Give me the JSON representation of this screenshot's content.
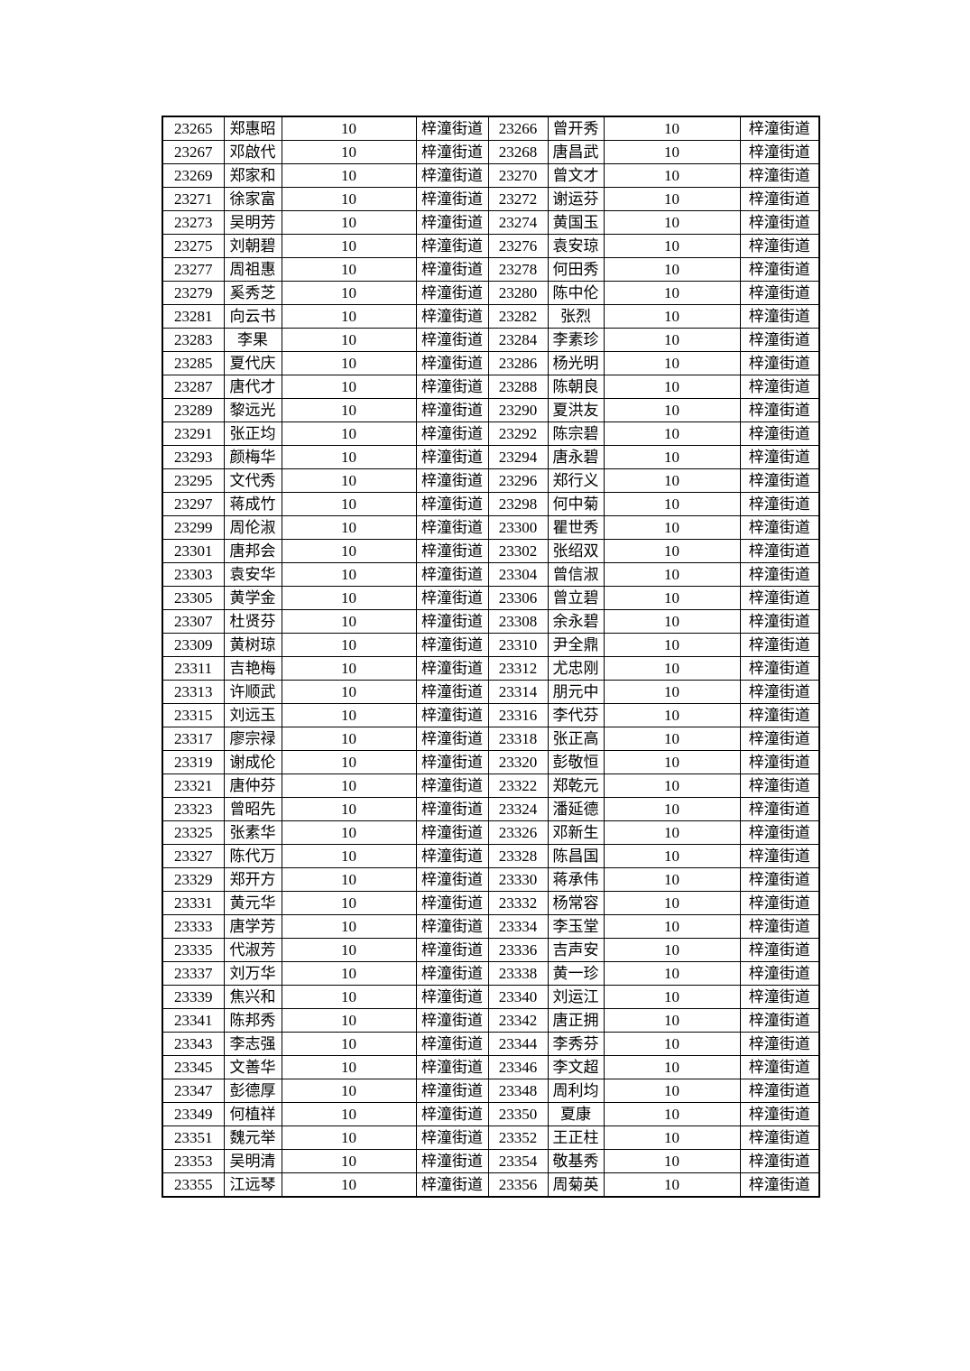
{
  "page": {
    "background_color": "#ffffff",
    "text_color": "#000000"
  },
  "table": {
    "column_roles": [
      "id",
      "name",
      "value",
      "district",
      "id",
      "name",
      "value",
      "district"
    ],
    "rows": [
      [
        "23265",
        "郑惠昭",
        "10",
        "梓潼街道",
        "23266",
        "曾开秀",
        "10",
        "梓潼街道"
      ],
      [
        "23267",
        "邓啟代",
        "10",
        "梓潼街道",
        "23268",
        "唐昌武",
        "10",
        "梓潼街道"
      ],
      [
        "23269",
        "郑家和",
        "10",
        "梓潼街道",
        "23270",
        "曾文才",
        "10",
        "梓潼街道"
      ],
      [
        "23271",
        "徐家富",
        "10",
        "梓潼街道",
        "23272",
        "谢运芬",
        "10",
        "梓潼街道"
      ],
      [
        "23273",
        "吴明芳",
        "10",
        "梓潼街道",
        "23274",
        "黄国玉",
        "10",
        "梓潼街道"
      ],
      [
        "23275",
        "刘朝碧",
        "10",
        "梓潼街道",
        "23276",
        "袁安琼",
        "10",
        "梓潼街道"
      ],
      [
        "23277",
        "周祖惠",
        "10",
        "梓潼街道",
        "23278",
        "何田秀",
        "10",
        "梓潼街道"
      ],
      [
        "23279",
        "奚秀芝",
        "10",
        "梓潼街道",
        "23280",
        "陈中伦",
        "10",
        "梓潼街道"
      ],
      [
        "23281",
        "向云书",
        "10",
        "梓潼街道",
        "23282",
        "张烈",
        "10",
        "梓潼街道"
      ],
      [
        "23283",
        "李果",
        "10",
        "梓潼街道",
        "23284",
        "李素珍",
        "10",
        "梓潼街道"
      ],
      [
        "23285",
        "夏代庆",
        "10",
        "梓潼街道",
        "23286",
        "杨光明",
        "10",
        "梓潼街道"
      ],
      [
        "23287",
        "唐代才",
        "10",
        "梓潼街道",
        "23288",
        "陈朝良",
        "10",
        "梓潼街道"
      ],
      [
        "23289",
        "黎远光",
        "10",
        "梓潼街道",
        "23290",
        "夏洪友",
        "10",
        "梓潼街道"
      ],
      [
        "23291",
        "张正均",
        "10",
        "梓潼街道",
        "23292",
        "陈宗碧",
        "10",
        "梓潼街道"
      ],
      [
        "23293",
        "颜梅华",
        "10",
        "梓潼街道",
        "23294",
        "唐永碧",
        "10",
        "梓潼街道"
      ],
      [
        "23295",
        "文代秀",
        "10",
        "梓潼街道",
        "23296",
        "郑行义",
        "10",
        "梓潼街道"
      ],
      [
        "23297",
        "蒋成竹",
        "10",
        "梓潼街道",
        "23298",
        "何中菊",
        "10",
        "梓潼街道"
      ],
      [
        "23299",
        "周伦淑",
        "10",
        "梓潼街道",
        "23300",
        "瞿世秀",
        "10",
        "梓潼街道"
      ],
      [
        "23301",
        "唐邦会",
        "10",
        "梓潼街道",
        "23302",
        "张绍双",
        "10",
        "梓潼街道"
      ],
      [
        "23303",
        "袁安华",
        "10",
        "梓潼街道",
        "23304",
        "曾信淑",
        "10",
        "梓潼街道"
      ],
      [
        "23305",
        "黄学金",
        "10",
        "梓潼街道",
        "23306",
        "曾立碧",
        "10",
        "梓潼街道"
      ],
      [
        "23307",
        "杜贤芬",
        "10",
        "梓潼街道",
        "23308",
        "余永碧",
        "10",
        "梓潼街道"
      ],
      [
        "23309",
        "黄树琼",
        "10",
        "梓潼街道",
        "23310",
        "尹全鼎",
        "10",
        "梓潼街道"
      ],
      [
        "23311",
        "吉艳梅",
        "10",
        "梓潼街道",
        "23312",
        "尤忠刚",
        "10",
        "梓潼街道"
      ],
      [
        "23313",
        "许顺武",
        "10",
        "梓潼街道",
        "23314",
        "朋元中",
        "10",
        "梓潼街道"
      ],
      [
        "23315",
        "刘远玉",
        "10",
        "梓潼街道",
        "23316",
        "李代芬",
        "10",
        "梓潼街道"
      ],
      [
        "23317",
        "廖宗禄",
        "10",
        "梓潼街道",
        "23318",
        "张正高",
        "10",
        "梓潼街道"
      ],
      [
        "23319",
        "谢成伦",
        "10",
        "梓潼街道",
        "23320",
        "彭敬恒",
        "10",
        "梓潼街道"
      ],
      [
        "23321",
        "唐仲芬",
        "10",
        "梓潼街道",
        "23322",
        "郑乾元",
        "10",
        "梓潼街道"
      ],
      [
        "23323",
        "曾昭先",
        "10",
        "梓潼街道",
        "23324",
        "潘延德",
        "10",
        "梓潼街道"
      ],
      [
        "23325",
        "张素华",
        "10",
        "梓潼街道",
        "23326",
        "邓新生",
        "10",
        "梓潼街道"
      ],
      [
        "23327",
        "陈代万",
        "10",
        "梓潼街道",
        "23328",
        "陈昌国",
        "10",
        "梓潼街道"
      ],
      [
        "23329",
        "郑开方",
        "10",
        "梓潼街道",
        "23330",
        "蒋承伟",
        "10",
        "梓潼街道"
      ],
      [
        "23331",
        "黄元华",
        "10",
        "梓潼街道",
        "23332",
        "杨常容",
        "10",
        "梓潼街道"
      ],
      [
        "23333",
        "唐学芳",
        "10",
        "梓潼街道",
        "23334",
        "李玉堂",
        "10",
        "梓潼街道"
      ],
      [
        "23335",
        "代淑芳",
        "10",
        "梓潼街道",
        "23336",
        "吉声安",
        "10",
        "梓潼街道"
      ],
      [
        "23337",
        "刘万华",
        "10",
        "梓潼街道",
        "23338",
        "黄一珍",
        "10",
        "梓潼街道"
      ],
      [
        "23339",
        "焦兴和",
        "10",
        "梓潼街道",
        "23340",
        "刘运江",
        "10",
        "梓潼街道"
      ],
      [
        "23341",
        "陈邦秀",
        "10",
        "梓潼街道",
        "23342",
        "唐正拥",
        "10",
        "梓潼街道"
      ],
      [
        "23343",
        "李志强",
        "10",
        "梓潼街道",
        "23344",
        "李秀芬",
        "10",
        "梓潼街道"
      ],
      [
        "23345",
        "文善华",
        "10",
        "梓潼街道",
        "23346",
        "李文超",
        "10",
        "梓潼街道"
      ],
      [
        "23347",
        "彭德厚",
        "10",
        "梓潼街道",
        "23348",
        "周利均",
        "10",
        "梓潼街道"
      ],
      [
        "23349",
        "何植祥",
        "10",
        "梓潼街道",
        "23350",
        "夏康",
        "10",
        "梓潼街道"
      ],
      [
        "23351",
        "魏元举",
        "10",
        "梓潼街道",
        "23352",
        "王正柱",
        "10",
        "梓潼街道"
      ],
      [
        "23353",
        "吴明清",
        "10",
        "梓潼街道",
        "23354",
        "敬基秀",
        "10",
        "梓潼街道"
      ],
      [
        "23355",
        "江远琴",
        "10",
        "梓潼街道",
        "23356",
        "周菊英",
        "10",
        "梓潼街道"
      ]
    ]
  }
}
